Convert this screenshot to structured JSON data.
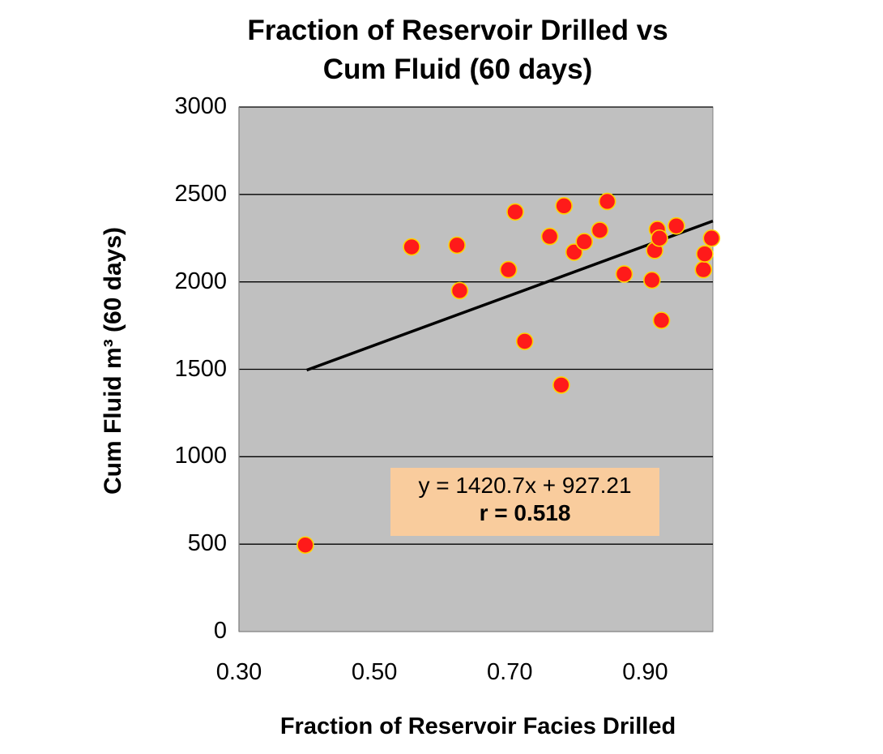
{
  "chart_data": {
    "type": "scatter",
    "title_line1": "Fraction of Reservoir Drilled vs",
    "title_line2": "Cum Fluid (60 days)",
    "xlabel": "Fraction of Reservoir Facies Drilled",
    "ylabel": "Cum Fluid m³ (60 days)",
    "xlim": [
      0.3,
      1.0
    ],
    "ylim": [
      0,
      3000
    ],
    "x_ticks": [
      "0.30",
      "0.50",
      "0.70",
      "0.90"
    ],
    "y_ticks": [
      "0",
      "500",
      "1000",
      "1500",
      "2000",
      "2500",
      "3000"
    ],
    "grid": "horizontal",
    "plot_background": "#c0c0c0",
    "marker_color": "#ff1a1a",
    "marker_edge_color": "#ffd200",
    "trendline": {
      "slope": 1420.7,
      "intercept": 927.21,
      "x_range": [
        0.4,
        1.0
      ],
      "equation": "y = 1420.7x + 927.21",
      "r_label": "r = 0.518"
    },
    "equation_box_color": "#f9cc9d",
    "points": [
      {
        "x": 0.398,
        "y": 495
      },
      {
        "x": 0.555,
        "y": 2200
      },
      {
        "x": 0.622,
        "y": 2210
      },
      {
        "x": 0.626,
        "y": 1950
      },
      {
        "x": 0.698,
        "y": 2070
      },
      {
        "x": 0.708,
        "y": 2400
      },
      {
        "x": 0.722,
        "y": 1660
      },
      {
        "x": 0.759,
        "y": 2260
      },
      {
        "x": 0.776,
        "y": 1410
      },
      {
        "x": 0.78,
        "y": 2435
      },
      {
        "x": 0.795,
        "y": 2170
      },
      {
        "x": 0.81,
        "y": 2230
      },
      {
        "x": 0.833,
        "y": 2295
      },
      {
        "x": 0.844,
        "y": 2460
      },
      {
        "x": 0.869,
        "y": 2045
      },
      {
        "x": 0.91,
        "y": 2010
      },
      {
        "x": 0.914,
        "y": 2180
      },
      {
        "x": 0.918,
        "y": 2300
      },
      {
        "x": 0.921,
        "y": 2250
      },
      {
        "x": 0.924,
        "y": 1780
      },
      {
        "x": 0.946,
        "y": 2320
      },
      {
        "x": 0.986,
        "y": 2070
      },
      {
        "x": 0.988,
        "y": 2160
      },
      {
        "x": 0.998,
        "y": 2250
      }
    ]
  }
}
